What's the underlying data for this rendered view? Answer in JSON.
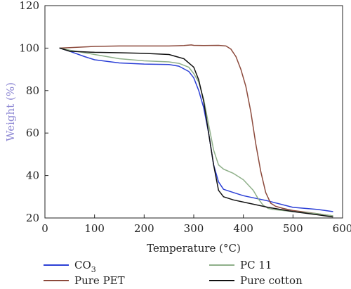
{
  "chart_data": {
    "type": "line",
    "title": "",
    "xlabel": "Temperature (°C)",
    "ylabel": "Weight (%)",
    "xlim": [
      0,
      600
    ],
    "ylim": [
      20,
      120
    ],
    "xticks": [
      0,
      100,
      200,
      300,
      400,
      500,
      600
    ],
    "yticks": [
      20,
      40,
      60,
      80,
      100,
      120
    ],
    "grid": false,
    "legend_position": "bottom",
    "colors": {
      "ylabel": "#8e88d4",
      "axis": "#222222"
    },
    "series": [
      {
        "name": "CO",
        "name_subscript": "3",
        "color": "#2b3fd6",
        "x": [
          30,
          50,
          80,
          100,
          150,
          200,
          250,
          270,
          290,
          300,
          310,
          320,
          330,
          340,
          350,
          360,
          380,
          400,
          450,
          500,
          550,
          580
        ],
        "y": [
          100,
          98.5,
          96,
          94.5,
          93,
          92.5,
          92.3,
          91.5,
          89,
          86,
          80,
          72,
          60,
          45,
          37,
          33.5,
          32,
          30.5,
          28,
          25,
          24,
          23
        ]
      },
      {
        "name": "Pure PET",
        "color": "#8c4a3c",
        "x": [
          30,
          50,
          100,
          150,
          200,
          250,
          280,
          295,
          300,
          320,
          350,
          365,
          375,
          385,
          395,
          405,
          415,
          425,
          435,
          445,
          455,
          465,
          480,
          500,
          550,
          580
        ],
        "y": [
          100,
          100.2,
          100.8,
          101,
          101,
          101,
          101.2,
          101.5,
          101.3,
          101.2,
          101.3,
          101,
          99.5,
          96,
          90,
          82,
          70,
          55,
          42,
          32,
          27,
          25.5,
          24.5,
          23.5,
          22,
          21
        ]
      },
      {
        "name": "PC 11",
        "color": "#8fb08a",
        "x": [
          30,
          50,
          100,
          150,
          200,
          250,
          270,
          290,
          300,
          310,
          320,
          330,
          340,
          350,
          360,
          380,
          400,
          420,
          430,
          440,
          450,
          460,
          480,
          500,
          550,
          580
        ],
        "y": [
          100,
          99,
          97,
          95,
          94,
          93.5,
          92.8,
          91,
          88,
          84,
          76,
          64,
          52,
          45,
          43,
          41,
          38,
          33,
          29,
          26,
          24.5,
          24,
          23.5,
          23,
          22,
          21
        ]
      },
      {
        "name": "Pure cotton",
        "color": "#111111",
        "x": [
          30,
          50,
          100,
          150,
          200,
          250,
          280,
          300,
          310,
          320,
          330,
          340,
          350,
          360,
          380,
          400,
          450,
          500,
          550,
          580
        ],
        "y": [
          100,
          98.5,
          98,
          97.8,
          97.5,
          97,
          95,
          91,
          85,
          75,
          60,
          45,
          33,
          30,
          28.5,
          27.5,
          25,
          23,
          21.5,
          20.5
        ]
      }
    ]
  }
}
